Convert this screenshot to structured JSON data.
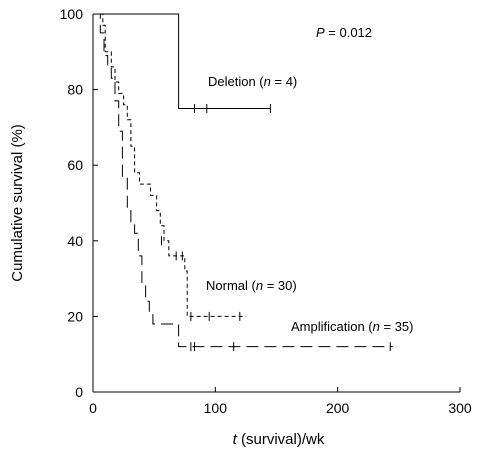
{
  "chart_data": {
    "type": "line",
    "subtype": "kaplan-meier",
    "title": "",
    "xlabel_italic": "t",
    "xlabel_rest": " (survival)/wk",
    "ylabel": "Cumulative survival (%)",
    "xlim": [
      0,
      300
    ],
    "ylim": [
      0,
      100
    ],
    "xticks": [
      0,
      100,
      200,
      300
    ],
    "yticks": [
      0,
      20,
      40,
      60,
      80,
      100
    ],
    "grid": false,
    "annotation": {
      "prefix": "P",
      "text": " = 0.012"
    },
    "series": [
      {
        "name": "Deletion",
        "label_prefix": "Deletion (",
        "label_italic": "n",
        "label_suffix": " = 4)",
        "line_style": "solid",
        "steps": [
          [
            0,
            100
          ],
          [
            70,
            100
          ],
          [
            70,
            75
          ],
          [
            145,
            75
          ]
        ],
        "censored": [
          [
            83,
            75
          ],
          [
            93,
            75
          ],
          [
            145,
            75
          ]
        ]
      },
      {
        "name": "Normal",
        "label_prefix": "Normal (",
        "label_italic": "n",
        "label_suffix": " = 30)",
        "line_style": "dashed",
        "steps": [
          [
            0,
            100
          ],
          [
            8,
            100
          ],
          [
            8,
            97
          ],
          [
            10,
            97
          ],
          [
            10,
            90
          ],
          [
            15,
            90
          ],
          [
            15,
            86
          ],
          [
            18,
            86
          ],
          [
            18,
            82
          ],
          [
            21,
            82
          ],
          [
            21,
            79
          ],
          [
            25,
            79
          ],
          [
            25,
            76
          ],
          [
            28,
            76
          ],
          [
            28,
            72
          ],
          [
            31,
            72
          ],
          [
            31,
            65
          ],
          [
            34,
            65
          ],
          [
            34,
            58
          ],
          [
            38,
            58
          ],
          [
            38,
            55
          ],
          [
            47,
            55
          ],
          [
            47,
            52
          ],
          [
            52,
            52
          ],
          [
            52,
            48
          ],
          [
            55,
            48
          ],
          [
            55,
            44
          ],
          [
            58,
            44
          ],
          [
            58,
            40
          ],
          [
            62,
            40
          ],
          [
            62,
            36
          ],
          [
            75,
            36
          ],
          [
            75,
            32
          ],
          [
            77,
            32
          ],
          [
            77,
            20
          ],
          [
            125,
            20
          ]
        ],
        "censored": [
          [
            56,
            40
          ],
          [
            68,
            36
          ],
          [
            73,
            36
          ],
          [
            80,
            20
          ],
          [
            95,
            20
          ],
          [
            120,
            20
          ]
        ]
      },
      {
        "name": "Amplification",
        "label_prefix": "Amplification (",
        "label_italic": "n",
        "label_suffix": " = 35)",
        "line_style": "long-dashed",
        "steps": [
          [
            0,
            100
          ],
          [
            6,
            100
          ],
          [
            6,
            95
          ],
          [
            9,
            95
          ],
          [
            9,
            89
          ],
          [
            12,
            89
          ],
          [
            12,
            86
          ],
          [
            15,
            86
          ],
          [
            15,
            83
          ],
          [
            18,
            83
          ],
          [
            18,
            77
          ],
          [
            21,
            77
          ],
          [
            21,
            69
          ],
          [
            24,
            69
          ],
          [
            24,
            57
          ],
          [
            28,
            57
          ],
          [
            28,
            48
          ],
          [
            31,
            48
          ],
          [
            31,
            45
          ],
          [
            34,
            45
          ],
          [
            34,
            42
          ],
          [
            37,
            42
          ],
          [
            37,
            36
          ],
          [
            40,
            36
          ],
          [
            40,
            29
          ],
          [
            43,
            29
          ],
          [
            43,
            24
          ],
          [
            46,
            24
          ],
          [
            46,
            21
          ],
          [
            49,
            21
          ],
          [
            49,
            18
          ],
          [
            70,
            18
          ],
          [
            70,
            12
          ],
          [
            245,
            12
          ]
        ],
        "censored": [
          [
            80,
            12
          ],
          [
            83,
            12
          ],
          [
            115,
            12
          ],
          [
            243,
            12
          ]
        ]
      }
    ]
  }
}
